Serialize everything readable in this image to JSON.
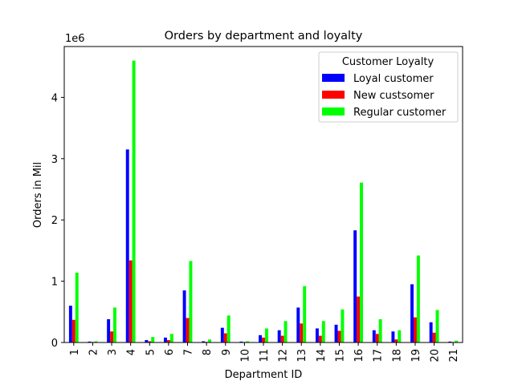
{
  "chart_data": {
    "type": "bar",
    "title": "Orders by department and loyalty",
    "xlabel": "Department ID",
    "ylabel": "Orders in Mil",
    "y_scale_label": "1e6",
    "ylim": [
      0,
      4830000
    ],
    "y_ticks": [
      0,
      1,
      2,
      3,
      4
    ],
    "categories": [
      "1",
      "2",
      "3",
      "4",
      "5",
      "6",
      "7",
      "8",
      "9",
      "10",
      "11",
      "12",
      "13",
      "14",
      "15",
      "16",
      "17",
      "18",
      "19",
      "20",
      "21"
    ],
    "legend": {
      "title": "Customer Loyalty",
      "placement": "top-right"
    },
    "grid": false,
    "series": [
      {
        "name": "Loyal customer",
        "color": "#0000ff",
        "values": [
          600000,
          15000,
          380000,
          3150000,
          40000,
          80000,
          850000,
          20000,
          240000,
          15000,
          120000,
          200000,
          570000,
          230000,
          290000,
          1830000,
          200000,
          180000,
          950000,
          330000,
          15000
        ]
      },
      {
        "name": "New custsomer",
        "color": "#ff0000",
        "values": [
          370000,
          8000,
          180000,
          1340000,
          20000,
          40000,
          400000,
          10000,
          150000,
          8000,
          80000,
          110000,
          310000,
          110000,
          190000,
          750000,
          140000,
          50000,
          410000,
          160000,
          8000
        ]
      },
      {
        "name": "Regular customer",
        "color": "#00ff00",
        "values": [
          1140000,
          20000,
          570000,
          4600000,
          90000,
          140000,
          1330000,
          50000,
          440000,
          20000,
          230000,
          350000,
          920000,
          350000,
          540000,
          2610000,
          380000,
          200000,
          1420000,
          530000,
          30000
        ]
      }
    ]
  }
}
